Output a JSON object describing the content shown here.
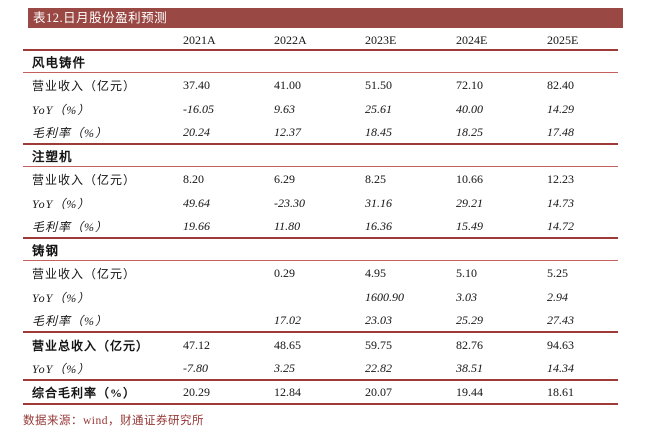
{
  "title": "表12.日月股份盈利预测",
  "source_note": "数据来源：wind，财通证券研究所",
  "colors": {
    "header_bg": "#9A4843",
    "line_major": "#9E3B38",
    "line_minor": "#C4615E",
    "source_text": "#953735"
  },
  "table": {
    "header": {
      "label": "",
      "years": [
        "2021A",
        "2022A",
        "2023E",
        "2024E",
        "2025E"
      ]
    },
    "rows": [
      {
        "type": "section",
        "label": "风电铸件",
        "values": [
          "",
          "",
          "",
          "",
          ""
        ],
        "italic": false,
        "border": "minor"
      },
      {
        "type": "data",
        "label": "营业收入（亿元）",
        "values": [
          "37.40",
          "41.00",
          "51.50",
          "72.10",
          "82.40"
        ],
        "italic": false,
        "border": "none"
      },
      {
        "type": "data",
        "label": "YoY（%）",
        "values": [
          "-16.05",
          "9.63",
          "25.61",
          "40.00",
          "14.29"
        ],
        "italic": true,
        "border": "none"
      },
      {
        "type": "data",
        "label": "毛利率（%）",
        "values": [
          "20.24",
          "12.37",
          "18.45",
          "18.25",
          "17.48"
        ],
        "italic": true,
        "border": "major"
      },
      {
        "type": "section",
        "label": "注塑机",
        "values": [
          "",
          "",
          "",
          "",
          ""
        ],
        "italic": false,
        "border": "minor"
      },
      {
        "type": "data",
        "label": "营业收入（亿元）",
        "values": [
          "8.20",
          "6.29",
          "8.25",
          "10.66",
          "12.23"
        ],
        "italic": false,
        "border": "none"
      },
      {
        "type": "data",
        "label": "YoY（%）",
        "values": [
          "49.64",
          "-23.30",
          "31.16",
          "29.21",
          "14.73"
        ],
        "italic": true,
        "border": "none"
      },
      {
        "type": "data",
        "label": "毛利率（%）",
        "values": [
          "19.66",
          "11.80",
          "16.36",
          "15.49",
          "14.72"
        ],
        "italic": true,
        "border": "major"
      },
      {
        "type": "section",
        "label": "铸钢",
        "values": [
          "",
          "",
          "",
          "",
          ""
        ],
        "italic": false,
        "border": "minor"
      },
      {
        "type": "data",
        "label": "营业收入（亿元）",
        "values": [
          "",
          "0.29",
          "4.95",
          "5.10",
          "5.25"
        ],
        "italic": false,
        "border": "none"
      },
      {
        "type": "data",
        "label": "YoY（%）",
        "values": [
          "",
          "",
          "1600.90",
          "3.03",
          "2.94"
        ],
        "italic": true,
        "border": "none"
      },
      {
        "type": "data",
        "label": "毛利率（%）",
        "values": [
          "",
          "17.02",
          "23.03",
          "25.29",
          "27.43"
        ],
        "italic": true,
        "border": "major"
      },
      {
        "type": "total",
        "label": "营业总收入（亿元）",
        "values": [
          "47.12",
          "48.65",
          "59.75",
          "82.76",
          "94.63"
        ],
        "italic": false,
        "border": "none"
      },
      {
        "type": "data",
        "label": "YoY（%）",
        "values": [
          "-7.80",
          "3.25",
          "22.82",
          "38.51",
          "14.34"
        ],
        "italic": true,
        "border": "major"
      },
      {
        "type": "total",
        "label": "综合毛利率（%）",
        "values": [
          "20.29",
          "12.84",
          "20.07",
          "19.44",
          "18.61"
        ],
        "italic": false,
        "border": "major"
      }
    ]
  }
}
